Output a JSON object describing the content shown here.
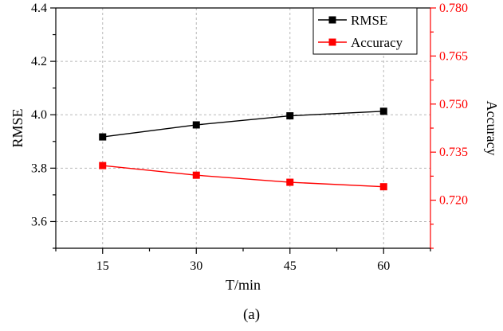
{
  "caption": "(a)",
  "chart_data": {
    "type": "line",
    "x": [
      15,
      30,
      45,
      60
    ],
    "xlabel": "T/min",
    "xticks": [
      15,
      30,
      45,
      60
    ],
    "xlim": [
      7.5,
      67.5
    ],
    "grid": true,
    "legend_position": "top-right",
    "left_axis": {
      "label": "RMSE",
      "ylim": [
        3.5,
        4.4
      ],
      "ticks": [
        "3.6",
        "3.8",
        "4.0",
        "4.2",
        "4.4"
      ],
      "color": "#000000"
    },
    "right_axis": {
      "label": "Accuracy",
      "ylim": [
        0.705,
        0.78
      ],
      "ticks": [
        "0.720",
        "0.735",
        "0.750",
        "0.765",
        "0.780"
      ],
      "color": "#ff0000"
    },
    "series": [
      {
        "name": "RMSE",
        "axis": "left",
        "color": "#000000",
        "marker": "square",
        "values": [
          3.917,
          3.962,
          3.996,
          4.013
        ]
      },
      {
        "name": "Accuracy",
        "axis": "right",
        "color": "#ff0000",
        "marker": "square",
        "values": [
          0.7308,
          0.7278,
          0.7256,
          0.7242
        ]
      }
    ]
  }
}
